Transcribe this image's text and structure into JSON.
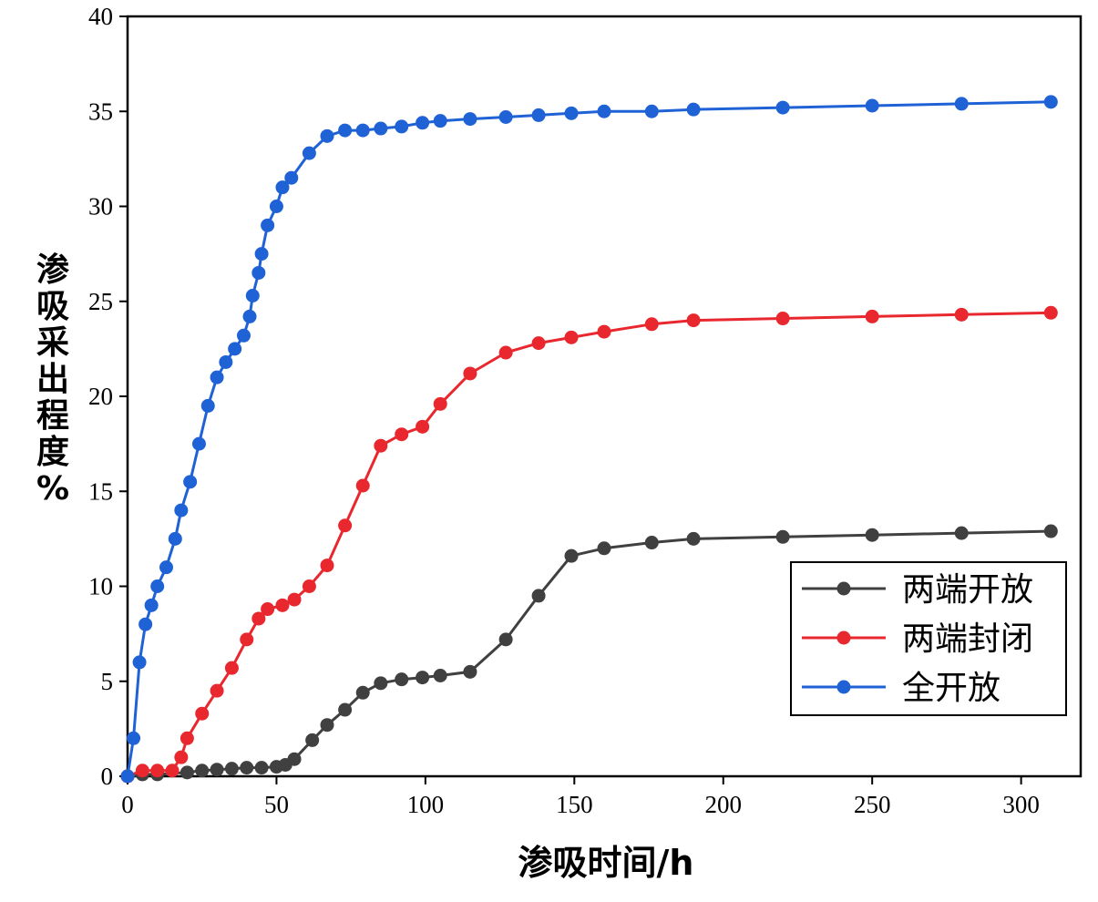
{
  "chart_data": {
    "type": "line",
    "title": "",
    "xlabel": "渗吸时间/h",
    "ylabel": "渗吸采出程度%",
    "xlim": [
      0,
      320
    ],
    "ylim": [
      0,
      40
    ],
    "xticks": [
      0,
      50,
      100,
      150,
      200,
      250,
      300
    ],
    "yticks": [
      0,
      5,
      10,
      15,
      20,
      25,
      30,
      35,
      40
    ],
    "grid": false,
    "legend_position": "bottom-right",
    "series": [
      {
        "name": "两端开放",
        "color": "#404040",
        "points": [
          [
            0,
            0
          ],
          [
            5,
            0.1
          ],
          [
            10,
            0.1
          ],
          [
            20,
            0.2
          ],
          [
            25,
            0.3
          ],
          [
            30,
            0.35
          ],
          [
            35,
            0.4
          ],
          [
            40,
            0.45
          ],
          [
            45,
            0.45
          ],
          [
            50,
            0.5
          ],
          [
            53,
            0.6
          ],
          [
            56,
            0.9
          ],
          [
            62,
            1.9
          ],
          [
            67,
            2.7
          ],
          [
            73,
            3.5
          ],
          [
            79,
            4.4
          ],
          [
            85,
            4.9
          ],
          [
            92,
            5.1
          ],
          [
            99,
            5.2
          ],
          [
            105,
            5.3
          ],
          [
            115,
            5.5
          ],
          [
            127,
            7.2
          ],
          [
            138,
            9.5
          ],
          [
            149,
            11.6
          ],
          [
            160,
            12.0
          ],
          [
            176,
            12.3
          ],
          [
            190,
            12.5
          ],
          [
            220,
            12.6
          ],
          [
            250,
            12.7
          ],
          [
            280,
            12.8
          ],
          [
            310,
            12.9
          ]
        ]
      },
      {
        "name": "两端封闭",
        "color": "#e8282e",
        "points": [
          [
            0,
            0
          ],
          [
            5,
            0.3
          ],
          [
            10,
            0.3
          ],
          [
            15,
            0.3
          ],
          [
            18,
            1.0
          ],
          [
            20,
            2.0
          ],
          [
            25,
            3.3
          ],
          [
            30,
            4.5
          ],
          [
            35,
            5.7
          ],
          [
            40,
            7.2
          ],
          [
            44,
            8.3
          ],
          [
            47,
            8.8
          ],
          [
            52,
            9.0
          ],
          [
            56,
            9.3
          ],
          [
            61,
            10.0
          ],
          [
            67,
            11.1
          ],
          [
            73,
            13.2
          ],
          [
            79,
            15.3
          ],
          [
            85,
            17.4
          ],
          [
            92,
            18.0
          ],
          [
            99,
            18.4
          ],
          [
            105,
            19.6
          ],
          [
            115,
            21.2
          ],
          [
            127,
            22.3
          ],
          [
            138,
            22.8
          ],
          [
            149,
            23.1
          ],
          [
            160,
            23.4
          ],
          [
            176,
            23.8
          ],
          [
            190,
            24.0
          ],
          [
            220,
            24.1
          ],
          [
            250,
            24.2
          ],
          [
            280,
            24.3
          ],
          [
            310,
            24.4
          ]
        ]
      },
      {
        "name": "全开放",
        "color": "#1f62d6",
        "points": [
          [
            0,
            0
          ],
          [
            2,
            2.0
          ],
          [
            4,
            6.0
          ],
          [
            6,
            8.0
          ],
          [
            8,
            9.0
          ],
          [
            10,
            10.0
          ],
          [
            13,
            11.0
          ],
          [
            16,
            12.5
          ],
          [
            18,
            14.0
          ],
          [
            21,
            15.5
          ],
          [
            24,
            17.5
          ],
          [
            27,
            19.5
          ],
          [
            30,
            21.0
          ],
          [
            33,
            21.8
          ],
          [
            36,
            22.5
          ],
          [
            39,
            23.2
          ],
          [
            41,
            24.2
          ],
          [
            42,
            25.3
          ],
          [
            44,
            26.5
          ],
          [
            45,
            27.5
          ],
          [
            47,
            29.0
          ],
          [
            50,
            30.0
          ],
          [
            52,
            31.0
          ],
          [
            55,
            31.5
          ],
          [
            61,
            32.8
          ],
          [
            67,
            33.7
          ],
          [
            73,
            34.0
          ],
          [
            79,
            34.0
          ],
          [
            85,
            34.1
          ],
          [
            92,
            34.2
          ],
          [
            99,
            34.4
          ],
          [
            105,
            34.5
          ],
          [
            115,
            34.6
          ],
          [
            127,
            34.7
          ],
          [
            138,
            34.8
          ],
          [
            149,
            34.9
          ],
          [
            160,
            35.0
          ],
          [
            176,
            35.0
          ],
          [
            190,
            35.1
          ],
          [
            220,
            35.2
          ],
          [
            250,
            35.3
          ],
          [
            280,
            35.4
          ],
          [
            310,
            35.5
          ]
        ]
      }
    ]
  }
}
